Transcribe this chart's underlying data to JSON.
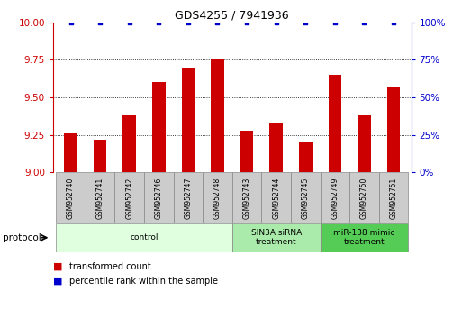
{
  "title": "GDS4255 / 7941936",
  "samples": [
    "GSM952740",
    "GSM952741",
    "GSM952742",
    "GSM952746",
    "GSM952747",
    "GSM952748",
    "GSM952743",
    "GSM952744",
    "GSM952745",
    "GSM952749",
    "GSM952750",
    "GSM952751"
  ],
  "transformed_count": [
    9.26,
    9.22,
    9.38,
    9.6,
    9.7,
    9.76,
    9.28,
    9.33,
    9.2,
    9.65,
    9.38,
    9.57
  ],
  "percentile_rank": [
    100,
    100,
    100,
    100,
    100,
    100,
    100,
    100,
    100,
    100,
    100,
    100
  ],
  "groups": [
    {
      "label": "control",
      "start": 0,
      "end": 6,
      "color": "#dfffdf"
    },
    {
      "label": "SIN3A siRNA\ntreatment",
      "start": 6,
      "end": 9,
      "color": "#aaeaaa"
    },
    {
      "label": "miR-138 mimic\ntreatment",
      "start": 9,
      "end": 12,
      "color": "#55cc55"
    }
  ],
  "ylim_left": [
    9.0,
    10.0
  ],
  "ylim_right": [
    0,
    100
  ],
  "yticks_left": [
    9.0,
    9.25,
    9.5,
    9.75,
    10.0
  ],
  "yticks_right": [
    0,
    25,
    50,
    75,
    100
  ],
  "bar_color": "#cc0000",
  "dot_color": "#0000cc",
  "left_axis_color": "#cc0000",
  "right_axis_color": "#0000cc",
  "sample_box_color": "#cccccc",
  "legend_items": [
    {
      "label": "transformed count",
      "color": "#cc0000"
    },
    {
      "label": "percentile rank within the sample",
      "color": "#0000cc"
    }
  ]
}
